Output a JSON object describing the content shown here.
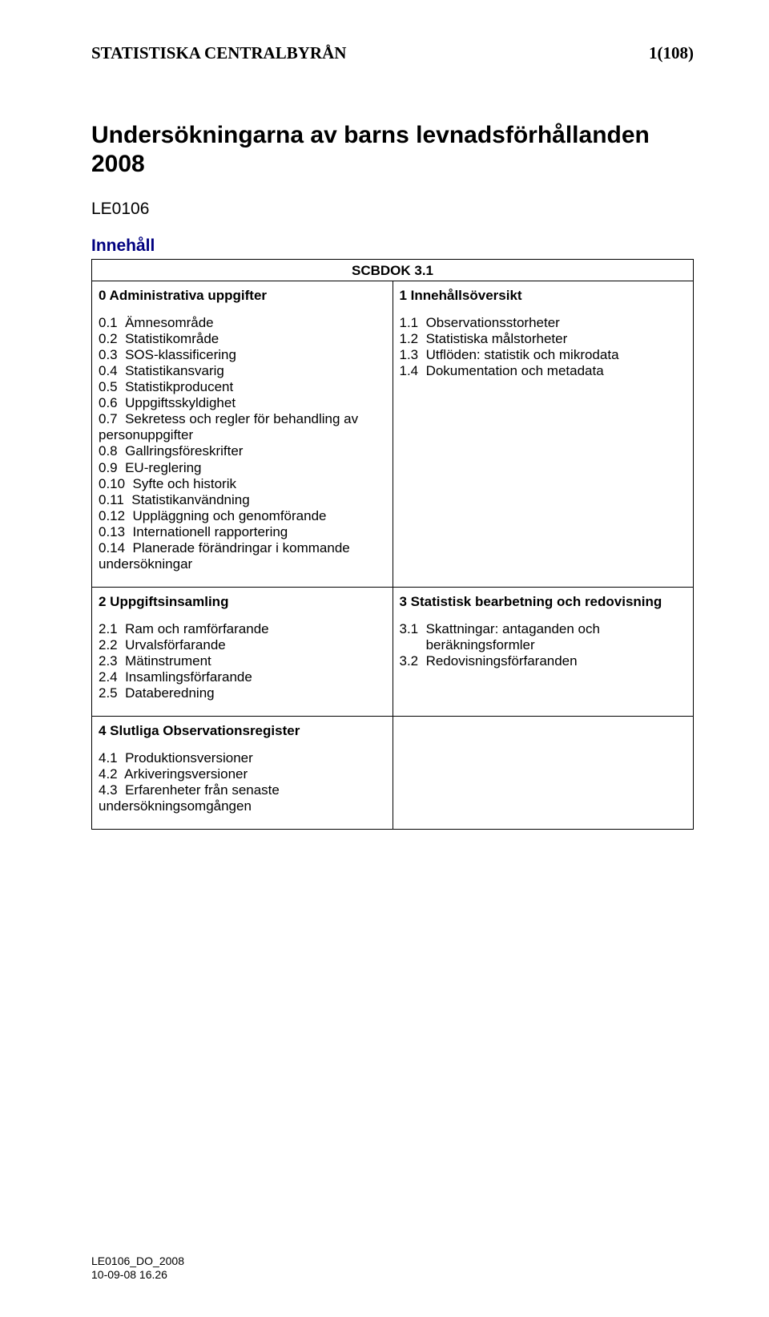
{
  "header": {
    "org": "STATISTISKA CENTRALBYRÅN",
    "page_no": "1(108)"
  },
  "title": "Undersökningarna av barns levnadsförhållanden 2008",
  "ref_code": "LE0106",
  "toc_heading": "Innehåll",
  "scbdok": "SCBDOK 3.1",
  "cells": {
    "c0": {
      "head": "0  Administrativa uppgifter",
      "items": [
        "0.1  Ämnesområde",
        "0.2  Statistikområde",
        "0.3  SOS-klassificering",
        "0.4  Statistikansvarig",
        "0.5  Statistikproducent",
        "0.6  Uppgiftsskyldighet",
        "0.7  Sekretess och regler för behandling av personuppgifter",
        "0.8  Gallringsföreskrifter",
        "0.9  EU-reglering",
        "0.10  Syfte och historik",
        "0.11  Statistikanvändning",
        "0.12  Uppläggning och genomförande",
        "0.13  Internationell rapportering",
        "0.14  Planerade förändringar i kommande undersökningar"
      ]
    },
    "c1": {
      "head": "1  Innehållsöversikt",
      "items": [
        "1.1  Observationsstorheter",
        "1.2  Statistiska målstorheter",
        "1.3  Utflöden: statistik och mikrodata",
        "1.4  Dokumentation och metadata"
      ]
    },
    "c2": {
      "head": "2  Uppgiftsinsamling",
      "items": [
        "2.1  Ram och ramförfarande",
        "2.2  Urvalsförfarande",
        "2.3  Mätinstrument",
        "2.4  Insamlingsförfarande",
        "2.5  Databeredning"
      ]
    },
    "c3": {
      "head": "3  Statistisk bearbetning och redovisning",
      "items": [
        "3.1  Skattningar: antaganden och\n       beräkningsformler",
        "3.2  Redovisningsförfaranden"
      ]
    },
    "c4": {
      "head": "4 Slutliga Observationsregister",
      "items": [
        "4.1  Produktionsversioner",
        "4.2  Arkiveringsversioner",
        "4.3  Erfarenheter från senaste undersökningsomgången"
      ]
    }
  },
  "footer": {
    "line1": "LE0106_DO_2008",
    "line2": "10-09-08 16.26"
  },
  "colors": {
    "heading": "#000080",
    "text": "#000000",
    "border": "#000000",
    "background": "#ffffff"
  },
  "fonts": {
    "header_family": "Times New Roman",
    "body_family": "Arial",
    "title_size_pt": 22,
    "body_size_pt": 13
  }
}
